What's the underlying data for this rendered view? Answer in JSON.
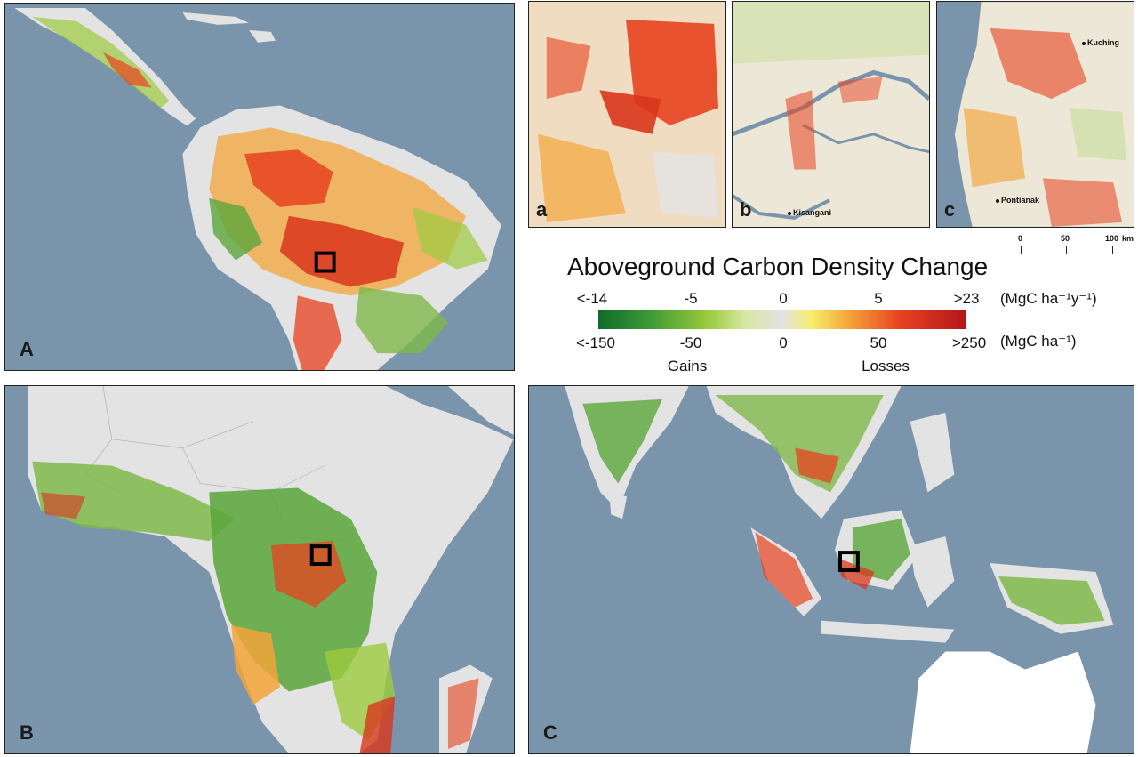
{
  "legend": {
    "title": "Aboveground Carbon Density Change",
    "top_ticks": [
      "<-14",
      "-5",
      "0",
      "5",
      ">23"
    ],
    "bottom_ticks": [
      "<-150",
      "-50",
      "0",
      "50",
      ">250"
    ],
    "top_unit": "(MgC ha⁻¹y⁻¹)",
    "bottom_unit": "(MgC ha⁻¹)",
    "gains_label": "Gains",
    "losses_label": "Losses",
    "colors": [
      "#0f6b2a",
      "#3d9a35",
      "#9ccb3e",
      "#e2e2e2",
      "#f5ef6a",
      "#f3a53a",
      "#e8421f",
      "#b3161b"
    ]
  },
  "panels": {
    "A": "A",
    "B": "B",
    "C": "C",
    "a": "a",
    "b": "b",
    "c": "c"
  },
  "cities": {
    "kisangani": "Kisangani",
    "kuching": "Kuching",
    "pontianak": "Pontianak"
  },
  "scalebar": {
    "labels": [
      "0",
      "50",
      "100"
    ],
    "unit": "km"
  },
  "colors": {
    "ocean": "#7a95ab",
    "land_nodata": "#e3e3e3",
    "gain": "#5aa63a",
    "loss": "#d9361c"
  }
}
